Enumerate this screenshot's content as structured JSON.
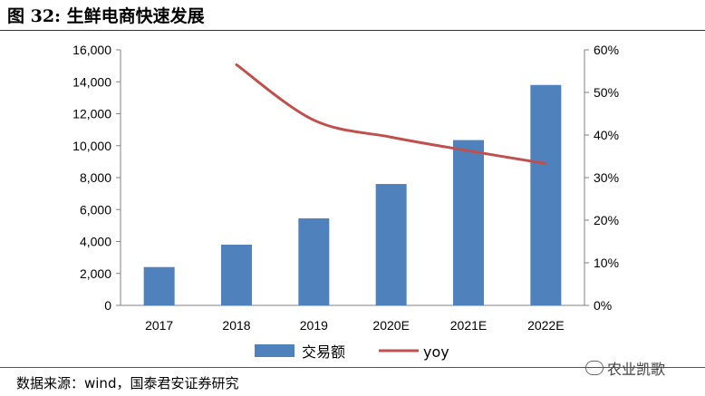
{
  "header": {
    "title": "图 32: 生鲜电商快速发展"
  },
  "footer": {
    "source": "数据来源：wind，国泰君安证券研究",
    "watermark": "农业凯歌"
  },
  "colors": {
    "bar": "#4f81bd",
    "line": "#c0504d"
  },
  "chart_data": {
    "type": "bar",
    "categories": [
      "2017",
      "2018",
      "2019",
      "2020E",
      "2021E",
      "2022E"
    ],
    "series": [
      {
        "name": "交易额",
        "type": "bar",
        "axis": "left",
        "values": [
          2400,
          3800,
          5450,
          7600,
          10350,
          13800
        ]
      },
      {
        "name": "yoy",
        "type": "line",
        "axis": "right",
        "values": [
          null,
          56.5,
          43.5,
          39.5,
          36.3,
          33.3
        ]
      }
    ],
    "y_left": {
      "min": 0,
      "max": 16000,
      "ticks": [
        "0",
        "2,000",
        "4,000",
        "6,000",
        "8,000",
        "10,000",
        "12,000",
        "14,000",
        "16,000"
      ]
    },
    "y_right": {
      "min": 0,
      "max": 60,
      "ticks": [
        "0%",
        "10%",
        "20%",
        "30%",
        "40%",
        "50%",
        "60%"
      ]
    },
    "legend": {
      "position": "bottom"
    },
    "grid": false
  }
}
